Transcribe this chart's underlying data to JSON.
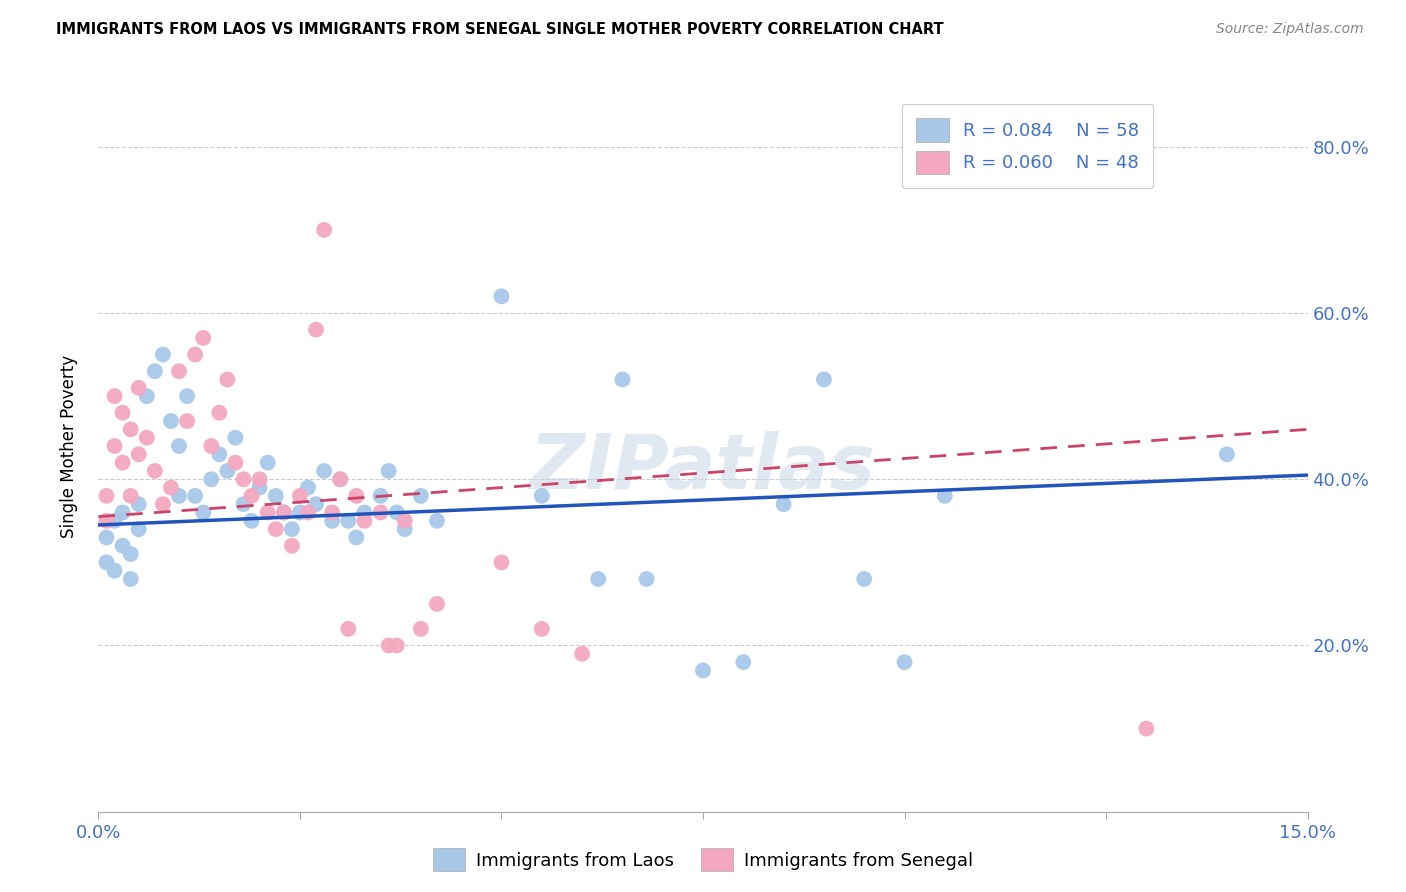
{
  "title": "IMMIGRANTS FROM LAOS VS IMMIGRANTS FROM SENEGAL SINGLE MOTHER POVERTY CORRELATION CHART",
  "source": "Source: ZipAtlas.com",
  "ylabel": "Single Mother Poverty",
  "y_ticks": [
    0.2,
    0.4,
    0.6,
    0.8
  ],
  "y_tick_labels": [
    "20.0%",
    "40.0%",
    "60.0%",
    "80.0%"
  ],
  "x_range": [
    0.0,
    0.15
  ],
  "y_range": [
    0.0,
    0.88
  ],
  "legend_r_laos": "R = 0.084",
  "legend_n_laos": "N = 58",
  "legend_r_senegal": "R = 0.060",
  "legend_n_senegal": "N = 48",
  "color_laos": "#a8c8e8",
  "color_senegal": "#f4a8c0",
  "color_laos_line": "#2255bb",
  "color_senegal_line": "#cc4466",
  "color_text_blue": "#4472c4",
  "color_text_pink": "#cc4466",
  "watermark": "ZIPatlas",
  "laos_x": [
    0.001,
    0.001,
    0.002,
    0.002,
    0.003,
    0.003,
    0.004,
    0.004,
    0.005,
    0.005,
    0.006,
    0.007,
    0.008,
    0.009,
    0.01,
    0.01,
    0.011,
    0.012,
    0.013,
    0.014,
    0.015,
    0.016,
    0.017,
    0.018,
    0.019,
    0.02,
    0.021,
    0.022,
    0.023,
    0.024,
    0.025,
    0.026,
    0.027,
    0.028,
    0.029,
    0.03,
    0.031,
    0.032,
    0.033,
    0.035,
    0.036,
    0.037,
    0.038,
    0.04,
    0.042,
    0.05,
    0.055,
    0.062,
    0.065,
    0.068,
    0.075,
    0.08,
    0.085,
    0.09,
    0.095,
    0.1,
    0.105,
    0.14
  ],
  "laos_y": [
    0.33,
    0.3,
    0.35,
    0.29,
    0.32,
    0.36,
    0.31,
    0.28,
    0.34,
    0.37,
    0.5,
    0.53,
    0.55,
    0.47,
    0.44,
    0.38,
    0.5,
    0.38,
    0.36,
    0.4,
    0.43,
    0.41,
    0.45,
    0.37,
    0.35,
    0.39,
    0.42,
    0.38,
    0.36,
    0.34,
    0.36,
    0.39,
    0.37,
    0.41,
    0.35,
    0.4,
    0.35,
    0.33,
    0.36,
    0.38,
    0.41,
    0.36,
    0.34,
    0.38,
    0.35,
    0.62,
    0.38,
    0.28,
    0.52,
    0.28,
    0.17,
    0.18,
    0.37,
    0.52,
    0.28,
    0.18,
    0.38,
    0.43
  ],
  "senegal_x": [
    0.001,
    0.001,
    0.002,
    0.002,
    0.003,
    0.003,
    0.004,
    0.004,
    0.005,
    0.005,
    0.006,
    0.007,
    0.008,
    0.009,
    0.01,
    0.011,
    0.012,
    0.013,
    0.014,
    0.015,
    0.016,
    0.017,
    0.018,
    0.019,
    0.02,
    0.021,
    0.022,
    0.023,
    0.024,
    0.025,
    0.026,
    0.027,
    0.028,
    0.029,
    0.03,
    0.031,
    0.032,
    0.033,
    0.035,
    0.036,
    0.037,
    0.038,
    0.04,
    0.042,
    0.05,
    0.055,
    0.06,
    0.13
  ],
  "senegal_y": [
    0.35,
    0.38,
    0.5,
    0.44,
    0.48,
    0.42,
    0.46,
    0.38,
    0.51,
    0.43,
    0.45,
    0.41,
    0.37,
    0.39,
    0.53,
    0.47,
    0.55,
    0.57,
    0.44,
    0.48,
    0.52,
    0.42,
    0.4,
    0.38,
    0.4,
    0.36,
    0.34,
    0.36,
    0.32,
    0.38,
    0.36,
    0.58,
    0.7,
    0.36,
    0.4,
    0.22,
    0.38,
    0.35,
    0.36,
    0.2,
    0.2,
    0.35,
    0.22,
    0.25,
    0.3,
    0.22,
    0.19,
    0.1
  ],
  "trend_laos_x0": 0.0,
  "trend_laos_y0": 0.345,
  "trend_laos_x1": 0.15,
  "trend_laos_y1": 0.405,
  "trend_senegal_x0": 0.0,
  "trend_senegal_y0": 0.355,
  "trend_senegal_x1": 0.15,
  "trend_senegal_y1": 0.46
}
